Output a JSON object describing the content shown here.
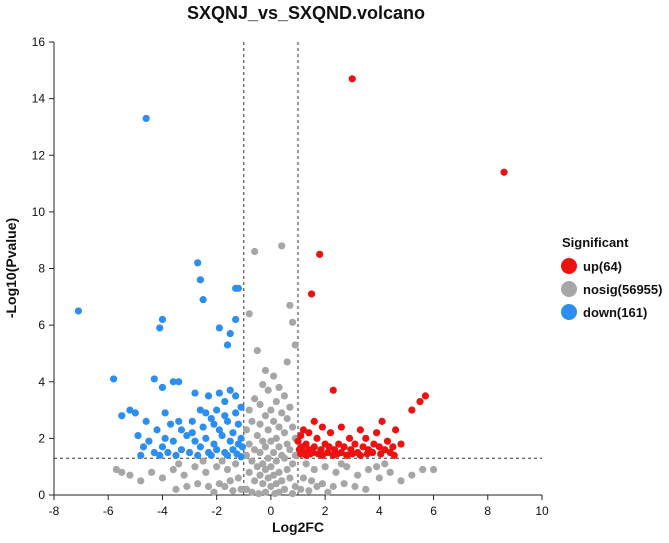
{
  "chart_data": {
    "type": "scatter",
    "title": "SXQNJ_vs_SXQND.volcano",
    "xlabel": "Log2FC",
    "ylabel": "-Log10(Pvalue)",
    "xlim": [
      -8,
      10
    ],
    "ylim": [
      0,
      16
    ],
    "xticks": [
      -8,
      -6,
      -4,
      -2,
      0,
      2,
      4,
      6,
      8,
      10
    ],
    "yticks": [
      0,
      2,
      4,
      6,
      8,
      10,
      12,
      14,
      16
    ],
    "thresholds": {
      "log2fc": [
        -1,
        1
      ],
      "neg_log10_p": 1.3
    },
    "legend": {
      "title": "Significant",
      "position": "right",
      "entries": [
        {
          "key": "up",
          "label": "up(64)",
          "color": "#ee1111"
        },
        {
          "key": "nosig",
          "label": "nosig(56955)",
          "color": "#a6a6a6"
        },
        {
          "key": "down",
          "label": "down(161)",
          "color": "#2c8ef0"
        }
      ]
    },
    "series": [
      {
        "name": "up",
        "color": "#ee1111",
        "points": [
          [
            3.0,
            14.7
          ],
          [
            8.6,
            11.4
          ],
          [
            1.8,
            8.5
          ],
          [
            1.5,
            7.1
          ],
          [
            2.3,
            3.7
          ],
          [
            5.7,
            3.5
          ],
          [
            5.5,
            3.3
          ],
          [
            5.2,
            3.0
          ],
          [
            4.1,
            2.6
          ],
          [
            1.6,
            2.6
          ],
          [
            1.9,
            2.4
          ],
          [
            2.6,
            2.4
          ],
          [
            4.6,
            2.3
          ],
          [
            1.2,
            2.3
          ],
          [
            3.3,
            2.3
          ],
          [
            1.4,
            2.2
          ],
          [
            2.2,
            2.2
          ],
          [
            3.9,
            2.2
          ],
          [
            1.1,
            2.1
          ],
          [
            1.7,
            2.0
          ],
          [
            2.9,
            2.0
          ],
          [
            3.5,
            2.0
          ],
          [
            4.3,
            1.9
          ],
          [
            1.0,
            1.9
          ],
          [
            1.3,
            1.8
          ],
          [
            2.0,
            1.8
          ],
          [
            2.5,
            1.8
          ],
          [
            3.1,
            1.8
          ],
          [
            3.8,
            1.8
          ],
          [
            4.8,
            1.8
          ],
          [
            1.15,
            1.7
          ],
          [
            1.6,
            1.7
          ],
          [
            2.15,
            1.7
          ],
          [
            2.7,
            1.7
          ],
          [
            3.4,
            1.7
          ],
          [
            4.0,
            1.7
          ],
          [
            4.5,
            1.7
          ],
          [
            1.05,
            1.6
          ],
          [
            1.4,
            1.6
          ],
          [
            1.85,
            1.6
          ],
          [
            2.35,
            1.6
          ],
          [
            2.95,
            1.6
          ],
          [
            3.6,
            1.6
          ],
          [
            4.2,
            1.6
          ],
          [
            1.2,
            1.5
          ],
          [
            1.55,
            1.5
          ],
          [
            2.1,
            1.5
          ],
          [
            2.6,
            1.5
          ],
          [
            3.2,
            1.5
          ],
          [
            3.75,
            1.5
          ],
          [
            4.4,
            1.5
          ],
          [
            1.1,
            1.45
          ],
          [
            1.45,
            1.45
          ],
          [
            1.75,
            1.45
          ],
          [
            2.45,
            1.45
          ],
          [
            3.0,
            1.45
          ],
          [
            3.55,
            1.45
          ],
          [
            4.05,
            1.45
          ],
          [
            1.3,
            1.4
          ],
          [
            1.9,
            1.4
          ],
          [
            2.3,
            1.4
          ],
          [
            2.8,
            1.4
          ],
          [
            3.3,
            1.4
          ],
          [
            4.55,
            1.4
          ]
        ]
      },
      {
        "name": "nosig",
        "color": "#a6a6a6",
        "points": [
          [
            -0.6,
            8.6
          ],
          [
            0.4,
            8.8
          ],
          [
            0.7,
            6.7
          ],
          [
            0.8,
            6.1
          ],
          [
            -0.8,
            6.4
          ],
          [
            -0.5,
            5.1
          ],
          [
            0.9,
            5.3
          ],
          [
            0.6,
            4.7
          ],
          [
            -0.2,
            4.4
          ],
          [
            0.1,
            4.2
          ],
          [
            -0.3,
            3.9
          ],
          [
            0.3,
            3.8
          ],
          [
            -0.1,
            3.7
          ],
          [
            0.5,
            3.5
          ],
          [
            -0.6,
            3.4
          ],
          [
            0.2,
            3.3
          ],
          [
            -0.4,
            3.2
          ],
          [
            0.7,
            3.1
          ],
          [
            -0.8,
            3.0
          ],
          [
            0.0,
            3.0
          ],
          [
            0.4,
            2.9
          ],
          [
            -0.2,
            2.8
          ],
          [
            0.6,
            2.7
          ],
          [
            -0.7,
            2.6
          ],
          [
            0.1,
            2.6
          ],
          [
            -0.4,
            2.5
          ],
          [
            0.3,
            2.4
          ],
          [
            0.8,
            2.4
          ],
          [
            -0.9,
            2.3
          ],
          [
            -0.1,
            2.3
          ],
          [
            0.5,
            2.2
          ],
          [
            -0.5,
            2.1
          ],
          [
            0.2,
            2.0
          ],
          [
            0.9,
            2.0
          ],
          [
            -0.3,
            1.9
          ],
          [
            0.0,
            1.9
          ],
          [
            0.6,
            1.8
          ],
          [
            -0.8,
            1.8
          ],
          [
            0.3,
            1.7
          ],
          [
            -0.2,
            1.7
          ],
          [
            0.7,
            1.6
          ],
          [
            -0.6,
            1.6
          ],
          [
            0.1,
            1.5
          ],
          [
            -0.4,
            1.5
          ],
          [
            0.4,
            1.4
          ],
          [
            0.9,
            1.4
          ],
          [
            -0.9,
            1.4
          ],
          [
            -0.1,
            1.3
          ],
          [
            0.5,
            1.3
          ],
          [
            -0.7,
            1.2
          ],
          [
            0.2,
            1.2
          ],
          [
            -0.3,
            1.1
          ],
          [
            0.8,
            1.1
          ],
          [
            0.0,
            1.0
          ],
          [
            -0.5,
            1.0
          ],
          [
            0.6,
            0.9
          ],
          [
            -0.2,
            0.9
          ],
          [
            0.3,
            0.8
          ],
          [
            -0.8,
            0.8
          ],
          [
            0.1,
            0.7
          ],
          [
            -0.4,
            0.7
          ],
          [
            0.7,
            0.6
          ],
          [
            -0.1,
            0.6
          ],
          [
            0.4,
            0.5
          ],
          [
            -0.6,
            0.5
          ],
          [
            0.2,
            0.4
          ],
          [
            -0.3,
            0.4
          ],
          [
            0.9,
            0.3
          ],
          [
            0.0,
            0.3
          ],
          [
            -0.9,
            0.2
          ],
          [
            0.5,
            0.2
          ],
          [
            -0.2,
            0.1
          ],
          [
            0.3,
            0.1
          ],
          [
            -0.7,
            0.1
          ],
          [
            0.8,
            0.05
          ],
          [
            -0.45,
            0.05
          ],
          [
            0.15,
            0.05
          ],
          [
            -1.3,
            1.1
          ],
          [
            -1.6,
            0.9
          ],
          [
            -2.0,
            1.0
          ],
          [
            -2.4,
            0.8
          ],
          [
            -2.8,
            1.0
          ],
          [
            -3.2,
            0.7
          ],
          [
            -3.6,
            0.9
          ],
          [
            -4.0,
            0.6
          ],
          [
            -4.4,
            0.8
          ],
          [
            -4.8,
            0.5
          ],
          [
            -5.2,
            0.7
          ],
          [
            -5.5,
            0.8
          ],
          [
            -5.7,
            0.9
          ],
          [
            -1.2,
            0.6
          ],
          [
            -1.5,
            0.5
          ],
          [
            -1.9,
            0.4
          ],
          [
            -2.3,
            0.3
          ],
          [
            -2.7,
            0.4
          ],
          [
            -3.1,
            0.3
          ],
          [
            -3.5,
            0.2
          ],
          [
            -1.1,
            0.2
          ],
          [
            -1.4,
            0.15
          ],
          [
            -2.1,
            0.1
          ],
          [
            -1.7,
            0.3
          ],
          [
            1.3,
            1.1
          ],
          [
            1.6,
            0.9
          ],
          [
            2.0,
            1.0
          ],
          [
            2.4,
            0.8
          ],
          [
            2.8,
            1.0
          ],
          [
            3.2,
            0.7
          ],
          [
            3.6,
            0.9
          ],
          [
            4.0,
            0.6
          ],
          [
            4.4,
            0.8
          ],
          [
            4.8,
            0.5
          ],
          [
            5.2,
            0.7
          ],
          [
            5.6,
            0.9
          ],
          [
            6.0,
            0.9
          ],
          [
            1.2,
            0.6
          ],
          [
            1.5,
            0.5
          ],
          [
            1.9,
            0.4
          ],
          [
            2.3,
            0.3
          ],
          [
            2.7,
            0.4
          ],
          [
            3.1,
            0.3
          ],
          [
            3.5,
            0.2
          ],
          [
            1.1,
            0.2
          ],
          [
            1.4,
            0.15
          ],
          [
            2.1,
            0.1
          ],
          [
            1.7,
            0.3
          ],
          [
            4.2,
            1.1
          ],
          [
            3.9,
            1.0
          ],
          [
            2.6,
            1.1
          ],
          [
            -2.5,
            1.2
          ],
          [
            -3.4,
            1.1
          ],
          [
            -1.8,
            1.2
          ]
        ]
      },
      {
        "name": "down",
        "color": "#2c8ef0",
        "points": [
          [
            -4.6,
            13.3
          ],
          [
            -2.7,
            8.2
          ],
          [
            -2.6,
            7.6
          ],
          [
            -7.1,
            6.5
          ],
          [
            -2.5,
            6.9
          ],
          [
            -1.3,
            7.3
          ],
          [
            -1.2,
            7.3
          ],
          [
            -4.0,
            6.2
          ],
          [
            -4.1,
            5.9
          ],
          [
            -1.9,
            5.9
          ],
          [
            -1.3,
            6.2
          ],
          [
            -1.5,
            5.7
          ],
          [
            -1.6,
            5.3
          ],
          [
            -5.8,
            4.1
          ],
          [
            -4.3,
            4.1
          ],
          [
            -3.6,
            4.0
          ],
          [
            -3.4,
            4.0
          ],
          [
            -4.0,
            3.8
          ],
          [
            -2.8,
            3.6
          ],
          [
            -1.5,
            3.7
          ],
          [
            -1.9,
            3.6
          ],
          [
            -1.3,
            3.5
          ],
          [
            -2.3,
            3.5
          ],
          [
            -1.7,
            3.3
          ],
          [
            -5.2,
            3.0
          ],
          [
            -5.0,
            2.9
          ],
          [
            -5.5,
            2.8
          ],
          [
            -3.9,
            2.9
          ],
          [
            -2.6,
            3.0
          ],
          [
            -2.0,
            3.0
          ],
          [
            -1.1,
            3.1
          ],
          [
            -4.6,
            2.6
          ],
          [
            -3.7,
            2.5
          ],
          [
            -2.9,
            2.6
          ],
          [
            -2.2,
            2.7
          ],
          [
            -1.6,
            2.6
          ],
          [
            -1.2,
            2.5
          ],
          [
            -4.2,
            2.3
          ],
          [
            -3.3,
            2.3
          ],
          [
            -2.5,
            2.4
          ],
          [
            -1.9,
            2.3
          ],
          [
            -1.4,
            2.2
          ],
          [
            -4.9,
            2.1
          ],
          [
            -3.9,
            2.0
          ],
          [
            -3.1,
            2.1
          ],
          [
            -2.4,
            2.0
          ],
          [
            -1.8,
            2.1
          ],
          [
            -1.1,
            2.0
          ],
          [
            -4.5,
            1.9
          ],
          [
            -3.6,
            1.9
          ],
          [
            -2.8,
            1.9
          ],
          [
            -2.1,
            1.8
          ],
          [
            -1.5,
            1.9
          ],
          [
            -1.2,
            1.8
          ],
          [
            -4.7,
            1.7
          ],
          [
            -4.0,
            1.7
          ],
          [
            -3.3,
            1.6
          ],
          [
            -2.6,
            1.7
          ],
          [
            -2.0,
            1.6
          ],
          [
            -1.4,
            1.6
          ],
          [
            -1.05,
            1.7
          ],
          [
            -4.3,
            1.5
          ],
          [
            -3.8,
            1.5
          ],
          [
            -3.0,
            1.5
          ],
          [
            -2.3,
            1.5
          ],
          [
            -1.7,
            1.5
          ],
          [
            -1.25,
            1.45
          ],
          [
            -4.8,
            1.4
          ],
          [
            -4.1,
            1.4
          ],
          [
            -3.5,
            1.4
          ],
          [
            -2.7,
            1.4
          ],
          [
            -2.2,
            1.4
          ],
          [
            -1.6,
            1.4
          ],
          [
            -1.1,
            1.35
          ],
          [
            -2.9,
            2.2
          ],
          [
            -3.4,
            2.6
          ],
          [
            -2.1,
            2.5
          ],
          [
            -1.7,
            2.8
          ],
          [
            -2.4,
            2.9
          ],
          [
            -1.3,
            2.9
          ]
        ]
      }
    ]
  }
}
